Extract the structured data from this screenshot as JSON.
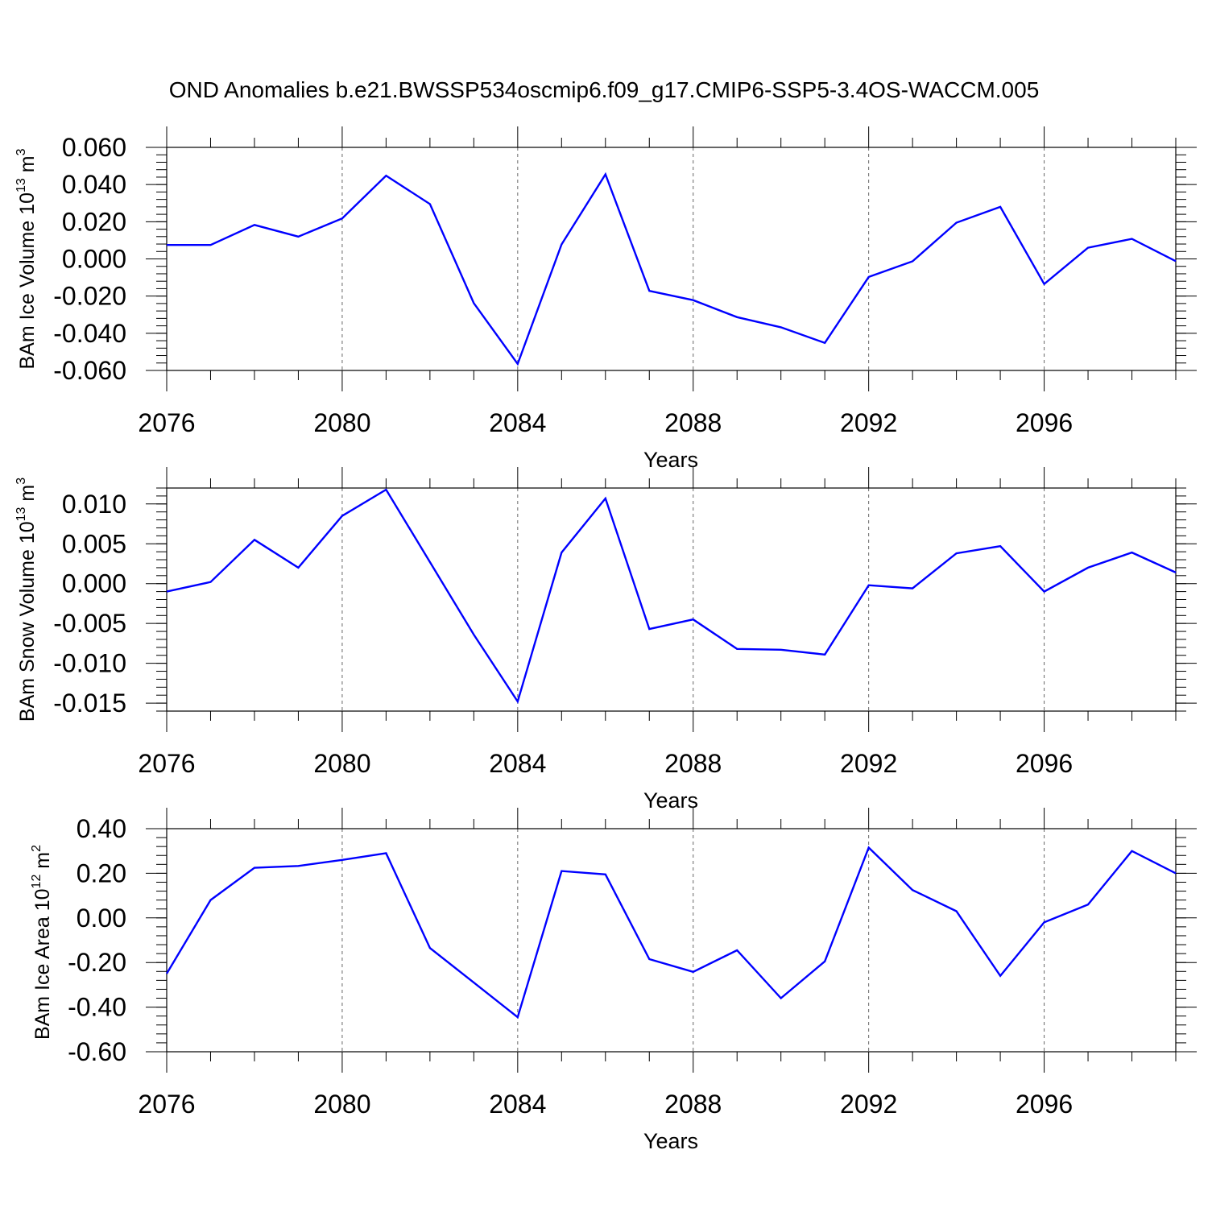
{
  "title": "OND Anomalies b.e21.BWSSP534oscmip6.f09_g17.CMIP6-SSP5-3.4OS-WACCM.005",
  "line_color": "#0000ff",
  "chart_data": [
    {
      "type": "line",
      "ylabel": "BAm Ice Volume 10",
      "ylabel_exp": "13",
      "ylabel_unit": " m",
      "ylabel_unit_exp": "3",
      "xlabel": "Years",
      "xlim": [
        2076,
        2099
      ],
      "ylim": [
        -0.06,
        0.06
      ],
      "xticks": [
        2076,
        2080,
        2084,
        2088,
        2092,
        2096
      ],
      "yticks": [
        -0.06,
        -0.04,
        -0.02,
        0.0,
        0.02,
        0.04,
        0.06
      ],
      "ytick_labels": [
        "-0.060",
        "-0.040",
        "-0.020",
        "0.000",
        "0.020",
        "0.040",
        "0.060"
      ],
      "grid": "dashed vertical lines at major x ticks",
      "x": [
        2076,
        2077,
        2078,
        2079,
        2080,
        2081,
        2082,
        2083,
        2084,
        2085,
        2086,
        2087,
        2088,
        2089,
        2090,
        2091,
        2092,
        2093,
        2094,
        2095,
        2096,
        2097,
        2098,
        2099
      ],
      "values": [
        0.0075,
        0.0075,
        0.0183,
        0.012,
        0.0218,
        0.0448,
        0.0295,
        -0.0238,
        -0.0565,
        0.0078,
        0.0455,
        -0.0172,
        -0.0222,
        -0.0313,
        -0.0368,
        -0.0452,
        -0.0097,
        -0.0013,
        0.0195,
        0.028,
        -0.0135,
        0.006,
        0.0108,
        -0.0012
      ]
    },
    {
      "type": "line",
      "ylabel": "BAm Snow Volume 10",
      "ylabel_exp": "13",
      "ylabel_unit": " m",
      "ylabel_unit_exp": "3",
      "xlabel": "Years",
      "xlim": [
        2076,
        2099
      ],
      "ylim": [
        -0.016,
        0.012
      ],
      "xticks": [
        2076,
        2080,
        2084,
        2088,
        2092,
        2096
      ],
      "yticks": [
        -0.015,
        -0.01,
        -0.005,
        0.0,
        0.005,
        0.01
      ],
      "ytick_labels": [
        "-0.015",
        "-0.010",
        "-0.005",
        "0.000",
        "0.005",
        "0.010"
      ],
      "grid": "dashed vertical lines at major x ticks",
      "x": [
        2076,
        2077,
        2078,
        2079,
        2080,
        2081,
        2082,
        2083,
        2084,
        2085,
        2086,
        2087,
        2088,
        2089,
        2090,
        2091,
        2092,
        2093,
        2094,
        2095,
        2096,
        2097,
        2098,
        2099
      ],
      "values": [
        -0.001,
        0.0002,
        0.0055,
        0.002,
        0.0085,
        0.0118,
        0.0027,
        -0.0064,
        -0.0148,
        0.0039,
        0.0107,
        -0.0057,
        -0.0045,
        -0.0082,
        -0.0083,
        -0.0089,
        -0.0002,
        -0.0006,
        0.0038,
        0.0047,
        -0.001,
        0.002,
        0.0039,
        0.0014
      ]
    },
    {
      "type": "line",
      "ylabel": "BAm Ice Area 10",
      "ylabel_exp": "12",
      "ylabel_unit": " m",
      "ylabel_unit_exp": "2",
      "xlabel": "Years",
      "xlim": [
        2076,
        2099
      ],
      "ylim": [
        -0.6,
        0.4
      ],
      "xticks": [
        2076,
        2080,
        2084,
        2088,
        2092,
        2096
      ],
      "yticks": [
        -0.6,
        -0.4,
        -0.2,
        0.0,
        0.2,
        0.4
      ],
      "ytick_labels": [
        "-0.60",
        "-0.40",
        "-0.20",
        "0.00",
        "0.20",
        "0.40"
      ],
      "grid": "dashed vertical lines at major x ticks",
      "x": [
        2076,
        2077,
        2078,
        2079,
        2080,
        2081,
        2082,
        2083,
        2084,
        2085,
        2086,
        2087,
        2088,
        2089,
        2090,
        2091,
        2092,
        2093,
        2094,
        2095,
        2096,
        2097,
        2098,
        2099
      ],
      "values": [
        -0.25,
        0.08,
        0.225,
        0.233,
        0.26,
        0.29,
        -0.135,
        -0.29,
        -0.445,
        0.21,
        0.195,
        -0.185,
        -0.242,
        -0.145,
        -0.36,
        -0.195,
        0.315,
        0.125,
        0.03,
        -0.26,
        -0.02,
        0.06,
        0.3,
        0.2
      ]
    }
  ]
}
